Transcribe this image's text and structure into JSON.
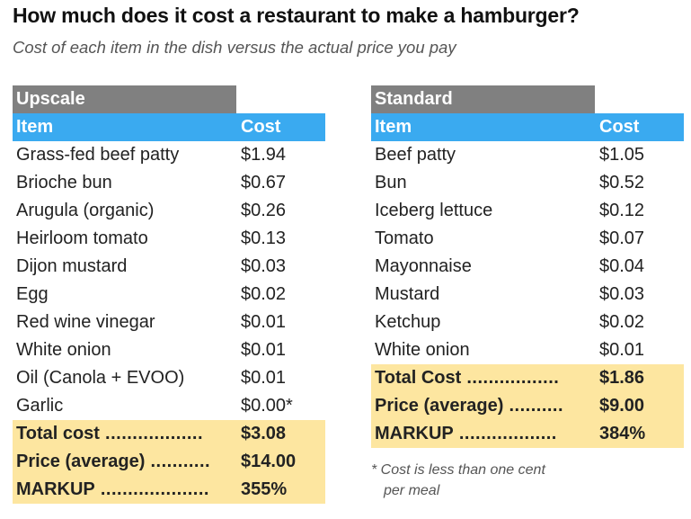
{
  "title": "How much does it cost a restaurant to make a hamburger?",
  "subtitle": "Cost of each item in the dish versus the actual price you pay",
  "chart_data": [
    {
      "type": "table",
      "section": "Upscale",
      "columns": [
        "Item",
        "Cost"
      ],
      "rows": [
        {
          "item": "Grass-fed beef patty",
          "cost": "$1.94"
        },
        {
          "item": "Brioche bun",
          "cost": "$0.67"
        },
        {
          "item": "Arugula (organic)",
          "cost": "$0.26"
        },
        {
          "item": "Heirloom tomato",
          "cost": "$0.13"
        },
        {
          "item": "Dijon mustard",
          "cost": "$0.03"
        },
        {
          "item": "Egg",
          "cost": "$0.02"
        },
        {
          "item": "Red wine vinegar",
          "cost": "$0.01"
        },
        {
          "item": "White onion",
          "cost": "$0.01"
        },
        {
          "item": "Oil (Canola + EVOO)",
          "cost": "$0.01"
        },
        {
          "item": "Garlic",
          "cost": "$0.00*"
        }
      ],
      "summary": [
        {
          "label": "Total cost",
          "value": "$3.08"
        },
        {
          "label": "Price (average)",
          "value": "$14.00"
        },
        {
          "label": "MARKUP",
          "value": "355%"
        }
      ]
    },
    {
      "type": "table",
      "section": "Standard",
      "columns": [
        "Item",
        "Cost"
      ],
      "rows": [
        {
          "item": "Beef patty",
          "cost": "$1.05"
        },
        {
          "item": "Bun",
          "cost": "$0.52"
        },
        {
          "item": "Iceberg lettuce",
          "cost": "$0.12"
        },
        {
          "item": "Tomato",
          "cost": "$0.07"
        },
        {
          "item": "Mayonnaise",
          "cost": "$0.04"
        },
        {
          "item": "Mustard",
          "cost": "$0.03"
        },
        {
          "item": "Ketchup",
          "cost": "$0.02"
        },
        {
          "item": "White onion",
          "cost": "$0.01"
        }
      ],
      "summary": [
        {
          "label": "Total Cost",
          "value": "$1.86"
        },
        {
          "label": "Price (average)",
          "value": "$9.00"
        },
        {
          "label": "MARKUP",
          "value": "384%"
        }
      ]
    }
  ],
  "footnote": {
    "line1": "* Cost is less than one cent",
    "line2": "per meal"
  },
  "colors": {
    "section_bg": "#808080",
    "header_bg": "#3aaaf0",
    "alt_row_bg": "#efefef",
    "summary_bg": "#fde6a0"
  }
}
